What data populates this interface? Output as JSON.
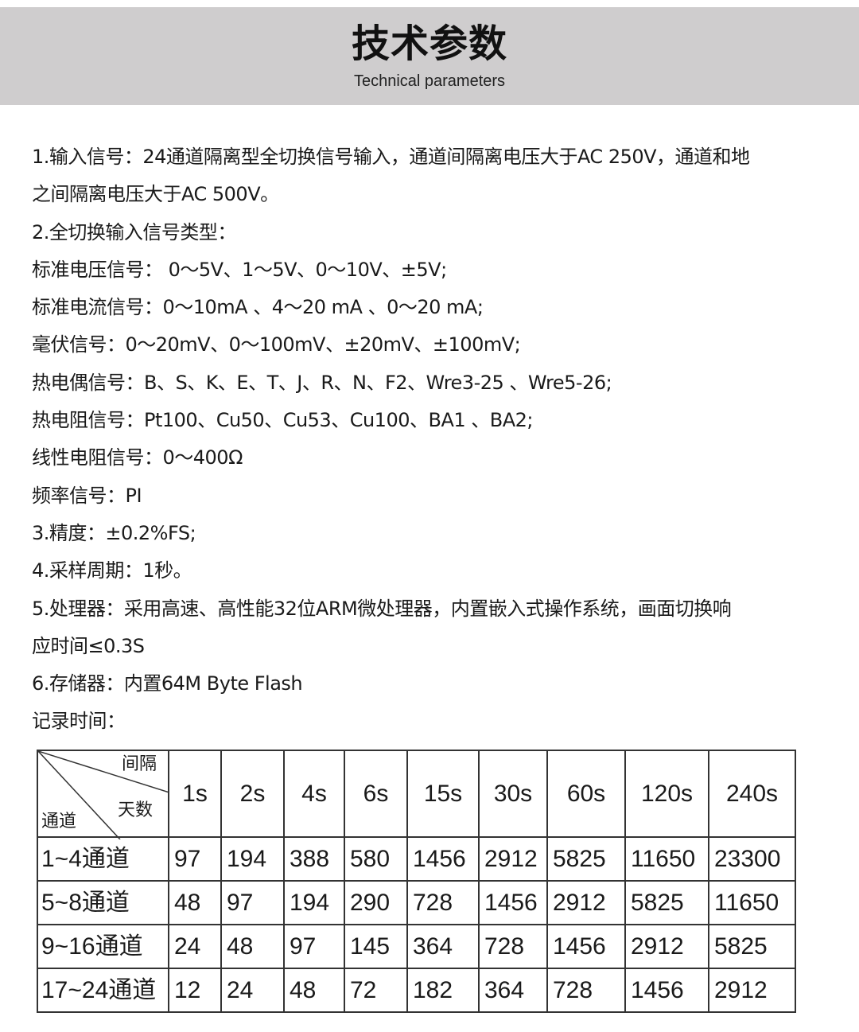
{
  "header": {
    "title": "技术参数",
    "subtitle": "Technical parameters"
  },
  "lines": [
    "1.输入信号：24通道隔离型全切换信号输入，通道间隔离电压大于AC 250V，通道和地",
    "之间隔离电压大于AC 500V。",
    "2.全切换输入信号类型：",
    "标准电压信号： 0～5V、1～5V、0～10V、±5V;",
    "标准电流信号：0～10mA 、4～20 mA 、0～20 mA;",
    "毫伏信号：0～20mV、0～100mV、±20mV、±100mV;",
    "热电偶信号：B、S、K、E、T、J、R、N、F2、Wre3-25 、Wre5-26;",
    "热电阻信号：Pt100、Cu50、Cu53、Cu100、BA1 、BA2;",
    "线性电阻信号：0～400Ω",
    "频率信号：PI",
    "3.精度：±0.2%FS;",
    "4.采样周期：1秒。",
    "5.处理器：采用高速、高性能32位ARM微处理器，内置嵌入式操作系统，画面切换响",
    "应时间≤0.3S",
    "6.存储器：内置64M Byte Flash",
    "记录时间："
  ],
  "table": {
    "corner": {
      "interval": "间隔",
      "days": "天数",
      "channel": "通道"
    },
    "columns": [
      "1s",
      "2s",
      "4s",
      "6s",
      "15s",
      "30s",
      "60s",
      "120s",
      "240s"
    ],
    "rows": [
      {
        "label": "1~4通道",
        "values": [
          "97",
          "194",
          "388",
          "580",
          "1456",
          "2912",
          "5825",
          "11650",
          "23300"
        ]
      },
      {
        "label": "5~8通道",
        "values": [
          "48",
          "97",
          "194",
          "290",
          "728",
          "1456",
          "2912",
          "5825",
          "11650"
        ]
      },
      {
        "label": "9~16通道",
        "values": [
          "24",
          "48",
          "97",
          "145",
          "364",
          "728",
          "1456",
          "2912",
          "5825"
        ]
      },
      {
        "label": "17~24通道",
        "values": [
          "12",
          "24",
          "48",
          "72",
          "182",
          "364",
          "728",
          "1456",
          "2912"
        ]
      }
    ]
  }
}
